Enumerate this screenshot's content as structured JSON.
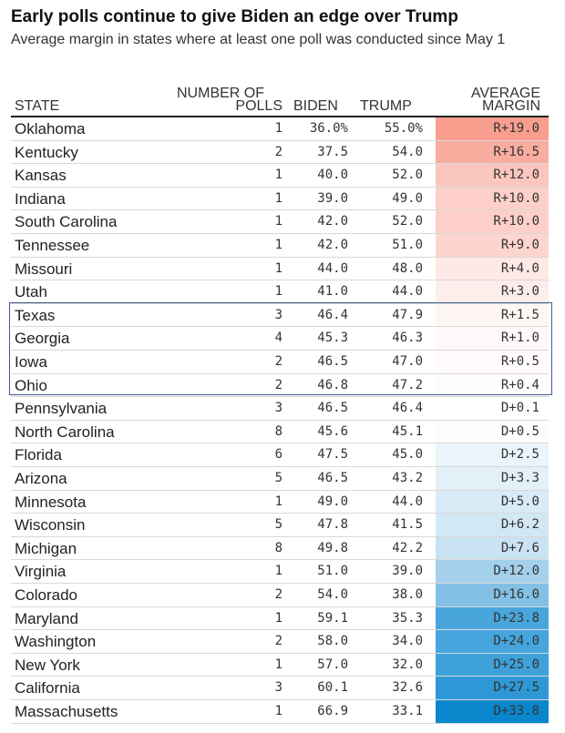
{
  "chart_data": {
    "type": "table",
    "title": "Early polls continue to give Biden an edge over Trump",
    "subtitle": "Average margin in states where at least one poll was conducted since May 1",
    "columns": {
      "state": "STATE",
      "polls_line1": "NUMBER OF",
      "polls_line2": "POLLS",
      "biden": "BIDEN",
      "trump": "TRUMP",
      "margin_line1": "AVERAGE",
      "margin_line2": "MARGIN"
    },
    "rows": [
      {
        "state": "Oklahoma",
        "polls": "1",
        "biden": "36.0%",
        "trump": "55.0%",
        "margin": "R+19.0",
        "margin_value": -19.0,
        "color": "#f79e8e"
      },
      {
        "state": "Kentucky",
        "polls": "2",
        "biden": "37.5",
        "trump": "54.0",
        "margin": "R+16.5",
        "margin_value": -16.5,
        "color": "#f9ad9f"
      },
      {
        "state": "Kansas",
        "polls": "1",
        "biden": "40.0",
        "trump": "52.0",
        "margin": "R+12.0",
        "margin_value": -12.0,
        "color": "#fbc6bd"
      },
      {
        "state": "Indiana",
        "polls": "1",
        "biden": "39.0",
        "trump": "49.0",
        "margin": "R+10.0",
        "margin_value": -10.0,
        "color": "#fcd0c8"
      },
      {
        "state": "South Carolina",
        "polls": "1",
        "biden": "42.0",
        "trump": "52.0",
        "margin": "R+10.0",
        "margin_value": -10.0,
        "color": "#fcd0c8"
      },
      {
        "state": "Tennessee",
        "polls": "1",
        "biden": "42.0",
        "trump": "51.0",
        "margin": "R+9.0",
        "margin_value": -9.0,
        "color": "#fcd5ce"
      },
      {
        "state": "Missouri",
        "polls": "1",
        "biden": "44.0",
        "trump": "48.0",
        "margin": "R+4.0",
        "margin_value": -4.0,
        "color": "#fde9e5"
      },
      {
        "state": "Utah",
        "polls": "1",
        "biden": "41.0",
        "trump": "44.0",
        "margin": "R+3.0",
        "margin_value": -3.0,
        "color": "#feeeeb"
      },
      {
        "state": "Texas",
        "polls": "3",
        "biden": "46.4",
        "trump": "47.9",
        "margin": "R+1.5",
        "margin_value": -1.5,
        "color": "#fef6f4"
      },
      {
        "state": "Georgia",
        "polls": "4",
        "biden": "45.3",
        "trump": "46.3",
        "margin": "R+1.0",
        "margin_value": -1.0,
        "color": "#fef9f8"
      },
      {
        "state": "Iowa",
        "polls": "2",
        "biden": "46.5",
        "trump": "47.0",
        "margin": "R+0.5",
        "margin_value": -0.5,
        "color": "#fffcfb"
      },
      {
        "state": "Ohio",
        "polls": "2",
        "biden": "46.8",
        "trump": "47.2",
        "margin": "R+0.4",
        "margin_value": -0.4,
        "color": "#fffcfc"
      },
      {
        "state": "Pennsylvania",
        "polls": "3",
        "biden": "46.5",
        "trump": "46.4",
        "margin": "D+0.1",
        "margin_value": 0.1,
        "color": "#ffffff"
      },
      {
        "state": "North Carolina",
        "polls": "8",
        "biden": "45.6",
        "trump": "45.1",
        "margin": "D+0.5",
        "margin_value": 0.5,
        "color": "#fbfdfe"
      },
      {
        "state": "Florida",
        "polls": "6",
        "biden": "47.5",
        "trump": "45.0",
        "margin": "D+2.5",
        "margin_value": 2.5,
        "color": "#eaf4fa"
      },
      {
        "state": "Arizona",
        "polls": "5",
        "biden": "46.5",
        "trump": "43.2",
        "margin": "D+3.3",
        "margin_value": 3.3,
        "color": "#e3f0f8"
      },
      {
        "state": "Minnesota",
        "polls": "1",
        "biden": "49.0",
        "trump": "44.0",
        "margin": "D+5.0",
        "margin_value": 5.0,
        "color": "#d9ebf6"
      },
      {
        "state": "Wisconsin",
        "polls": "5",
        "biden": "47.8",
        "trump": "41.5",
        "margin": "D+6.2",
        "margin_value": 6.2,
        "color": "#d2e8f4"
      },
      {
        "state": "Michigan",
        "polls": "8",
        "biden": "49.8",
        "trump": "42.2",
        "margin": "D+7.6",
        "margin_value": 7.6,
        "color": "#c9e3f2"
      },
      {
        "state": "Virginia",
        "polls": "1",
        "biden": "51.0",
        "trump": "39.0",
        "margin": "D+12.0",
        "margin_value": 12.0,
        "color": "#a4d0ec"
      },
      {
        "state": "Colorado",
        "polls": "2",
        "biden": "54.0",
        "trump": "38.0",
        "margin": "D+16.0",
        "margin_value": 16.0,
        "color": "#84c0e6"
      },
      {
        "state": "Maryland",
        "polls": "1",
        "biden": "59.1",
        "trump": "35.3",
        "margin": "D+23.8",
        "margin_value": 23.8,
        "color": "#48a6dc"
      },
      {
        "state": "Washington",
        "polls": "2",
        "biden": "58.0",
        "trump": "34.0",
        "margin": "D+24.0",
        "margin_value": 24.0,
        "color": "#46a5dc"
      },
      {
        "state": "New York",
        "polls": "1",
        "biden": "57.0",
        "trump": "32.0",
        "margin": "D+25.0",
        "margin_value": 25.0,
        "color": "#3ea1da"
      },
      {
        "state": "California",
        "polls": "3",
        "biden": "60.1",
        "trump": "32.6",
        "margin": "D+27.5",
        "margin_value": 27.5,
        "color": "#2e98d6"
      },
      {
        "state": "Massachusetts",
        "polls": "1",
        "biden": "66.9",
        "trump": "33.1",
        "margin": "D+33.8",
        "margin_value": 33.8,
        "color": "#0a86cc"
      }
    ],
    "highlighted_states": [
      "Texas",
      "Georgia",
      "Iowa",
      "Ohio"
    ],
    "highlight_color": "#3d5a8a"
  }
}
